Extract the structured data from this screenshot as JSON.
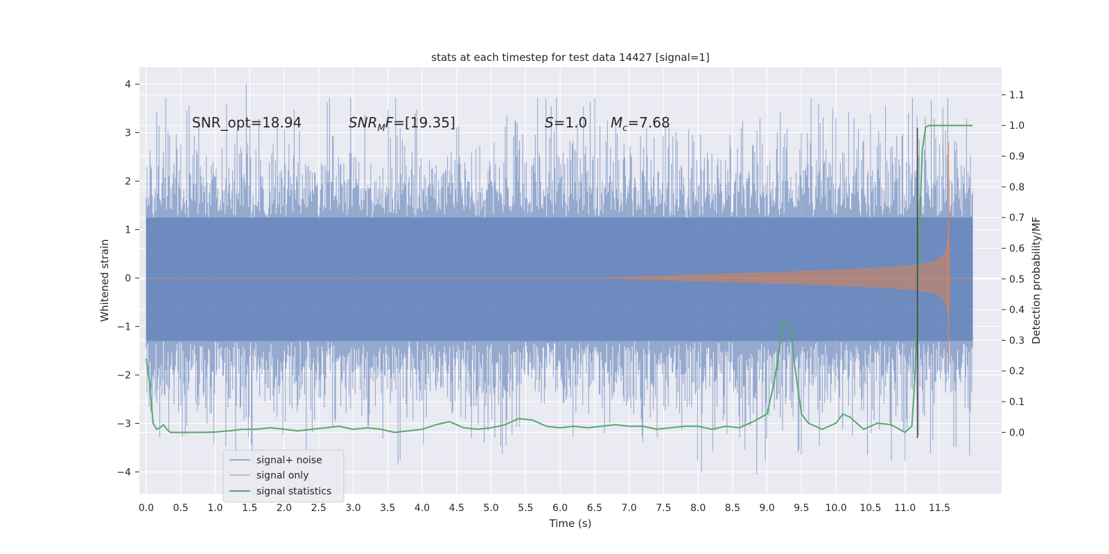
{
  "chart_data": {
    "type": "line",
    "title": "stats at each timestep for test data 14427 [signal=1]",
    "xlabel": "Time (s)",
    "ylabel": "Whitened strain",
    "y2label": "Detection probability/MF",
    "xlim": [
      -0.1,
      12.4
    ],
    "ylim": [
      -4.45,
      4.35
    ],
    "y2lim": [
      -0.2,
      1.19
    ],
    "x_ticks": [
      0.0,
      0.5,
      1.0,
      1.5,
      2.0,
      2.5,
      3.0,
      3.5,
      4.0,
      4.5,
      5.0,
      5.5,
      6.0,
      6.5,
      7.0,
      7.5,
      8.0,
      8.5,
      9.0,
      9.5,
      10.0,
      10.5,
      11.0,
      11.5
    ],
    "x_tick_labels": [
      "0.0",
      "0.5",
      "1.0",
      "1.5",
      "2.0",
      "2.5",
      "3.0",
      "3.5",
      "4.0",
      "4.5",
      "5.0",
      "5.5",
      "6.0",
      "6.5",
      "7.0",
      "7.5",
      "8.0",
      "8.5",
      "9.0",
      "9.5",
      "10.0",
      "10.5",
      "11.0",
      "11.5"
    ],
    "y_ticks": [
      4,
      3,
      2,
      1,
      0,
      -1,
      -2,
      -3,
      -4
    ],
    "y_tick_labels": [
      "4",
      "3",
      "2",
      "1",
      "0",
      "−1",
      "−2",
      "−3",
      "−4"
    ],
    "y2_ticks": [
      1.1,
      1.0,
      0.9,
      0.8,
      0.7,
      0.6,
      0.5,
      0.4,
      0.3,
      0.2,
      0.1,
      0.0
    ],
    "y2_tick_labels": [
      "1.1",
      "1.0",
      "0.9",
      "0.8",
      "0.7",
      "0.6",
      "0.5",
      "0.4",
      "0.3",
      "0.2",
      "0.1",
      "0.0"
    ],
    "grid": true,
    "legend_position": "lower-left",
    "annotations": [
      {
        "text": "SNR_opt=18.94",
        "x": 0.2,
        "y": 3.15
      },
      {
        "text": "SNR_MF=[19.35]",
        "x": 2.6,
        "y": 3.15
      },
      {
        "text": "S=1.0",
        "x": 5.6,
        "y": 3.15
      },
      {
        "text": "M_c=7.68",
        "x": 6.6,
        "y": 3.15
      }
    ],
    "vline": {
      "x": 11.18,
      "y_range": [
        -3.3,
        3.1
      ]
    },
    "series": [
      {
        "name": "signal+ noise",
        "kind": "noise",
        "x_range": [
          0.0,
          11.98
        ],
        "core_band": [
          -1.3,
          1.25
        ],
        "peak_max": 4.0,
        "trough_min": -4.05,
        "color": "#4c72b0"
      },
      {
        "name": "signal only",
        "kind": "chirp",
        "x_range": [
          0.0,
          11.98
        ],
        "onset": 7.0,
        "merger": 11.65,
        "peak_amplitude": 2.8,
        "color": "#dd8452"
      },
      {
        "name": "signal statistics",
        "kind": "probability",
        "axis": "right",
        "color": "#55a868",
        "x": [
          0.0,
          0.05,
          0.1,
          0.15,
          0.2,
          0.25,
          0.3,
          0.35,
          0.4,
          0.5,
          0.6,
          0.8,
          1.0,
          1.2,
          1.4,
          1.6,
          1.8,
          2.0,
          2.2,
          2.4,
          2.6,
          2.8,
          3.0,
          3.2,
          3.4,
          3.6,
          3.8,
          4.0,
          4.2,
          4.4,
          4.6,
          4.8,
          5.0,
          5.2,
          5.4,
          5.6,
          5.8,
          6.0,
          6.2,
          6.4,
          6.6,
          6.8,
          7.0,
          7.2,
          7.4,
          7.6,
          7.8,
          8.0,
          8.2,
          8.4,
          8.6,
          8.8,
          9.0,
          9.1,
          9.2,
          9.25,
          9.3,
          9.35,
          9.4,
          9.5,
          9.6,
          9.8,
          10.0,
          10.1,
          10.2,
          10.4,
          10.6,
          10.8,
          11.0,
          11.1,
          11.15,
          11.2,
          11.25,
          11.3,
          11.35,
          11.4,
          11.5,
          11.6,
          11.8,
          11.98
        ],
        "y": [
          0.24,
          0.16,
          0.03,
          0.01,
          0.015,
          0.025,
          0.01,
          0.0,
          0.0,
          0.0,
          0.0,
          0.0,
          0.001,
          0.005,
          0.01,
          0.01,
          0.015,
          0.01,
          0.005,
          0.01,
          0.015,
          0.02,
          0.01,
          0.015,
          0.01,
          0.0,
          0.005,
          0.01,
          0.025,
          0.035,
          0.015,
          0.01,
          0.015,
          0.025,
          0.045,
          0.04,
          0.02,
          0.015,
          0.02,
          0.015,
          0.02,
          0.025,
          0.02,
          0.02,
          0.01,
          0.015,
          0.02,
          0.02,
          0.01,
          0.02,
          0.015,
          0.035,
          0.06,
          0.16,
          0.3,
          0.37,
          0.36,
          0.32,
          0.22,
          0.06,
          0.03,
          0.01,
          0.03,
          0.06,
          0.05,
          0.01,
          0.03,
          0.025,
          0.0,
          0.02,
          0.2,
          0.6,
          0.92,
          0.995,
          1.0,
          1.0,
          1.0,
          1.0,
          1.0,
          1.0
        ]
      }
    ]
  }
}
